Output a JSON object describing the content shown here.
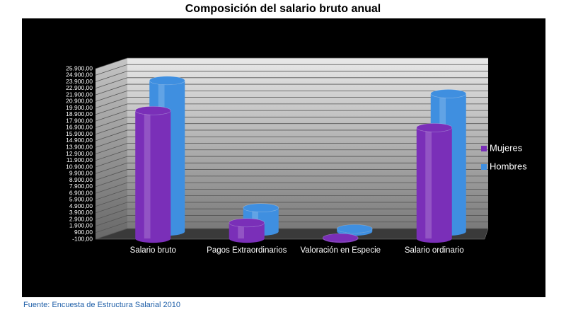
{
  "chart_data": {
    "type": "bar3d",
    "title": "Composición del salario bruto anual",
    "source": "Fuente: Encuesta de Estructura Salarial 2010",
    "categories": [
      "Salario bruto",
      "Pagos Extraordinarios",
      "Valoración en Especie",
      "Salario ordinario"
    ],
    "series": [
      {
        "name": "Mujeres",
        "color": "#7a2fb8",
        "values": [
          19500,
          2400,
          100,
          16900
        ]
      },
      {
        "name": "Hombres",
        "color": "#3f8fe0",
        "values": [
          23000,
          3600,
          400,
          21000
        ]
      }
    ],
    "ylim": [
      -100,
      25900
    ],
    "yticks": [
      {
        "value": -100,
        "label": "-100,00"
      },
      {
        "value": 900,
        "label": "900,00"
      },
      {
        "value": 1900,
        "label": "1.900,00"
      },
      {
        "value": 2900,
        "label": "2.900,00"
      },
      {
        "value": 3900,
        "label": "3.900,00"
      },
      {
        "value": 4900,
        "label": "4.900,00"
      },
      {
        "value": 5900,
        "label": "5.900,00"
      },
      {
        "value": 6900,
        "label": "6.900,00"
      },
      {
        "value": 7900,
        "label": "7.900,00"
      },
      {
        "value": 8900,
        "label": "8.900,00"
      },
      {
        "value": 9900,
        "label": "9.900,00"
      },
      {
        "value": 10900,
        "label": "10.900,00"
      },
      {
        "value": 11900,
        "label": "11.900,00"
      },
      {
        "value": 12900,
        "label": "12.900,00"
      },
      {
        "value": 13900,
        "label": "13.900,00"
      },
      {
        "value": 14900,
        "label": "14.900,00"
      },
      {
        "value": 15900,
        "label": "15.900,00"
      },
      {
        "value": 16900,
        "label": "16.900,00"
      },
      {
        "value": 17900,
        "label": "17.900,00"
      },
      {
        "value": 18900,
        "label": "18.900,00"
      },
      {
        "value": 19900,
        "label": "19.900,00"
      },
      {
        "value": 20900,
        "label": "20.900,00"
      },
      {
        "value": 21900,
        "label": "21.900,00"
      },
      {
        "value": 22900,
        "label": "22.900,00"
      },
      {
        "value": 23900,
        "label": "23.900,00"
      },
      {
        "value": 24900,
        "label": "24.900,00"
      },
      {
        "value": 25900,
        "label": "25.900,00"
      }
    ],
    "grid": true,
    "legend": "right"
  }
}
